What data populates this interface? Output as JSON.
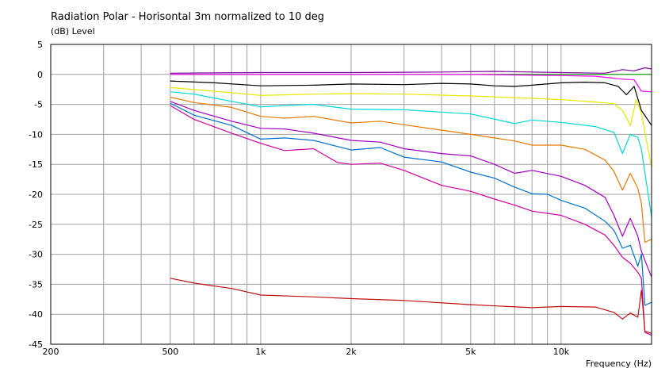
{
  "chart_data": {
    "type": "line",
    "title": "Radiation Polar - Horisontal 3m normalized to 10 deg",
    "ylabel": "(dB)  Level",
    "xlabel": "Frequency  (Hz)",
    "x_scale": "log",
    "xlim": [
      200,
      20000
    ],
    "ylim": [
      -45,
      5
    ],
    "grid": true,
    "x_tick_labels": [
      {
        "value": 200,
        "label": "200"
      },
      {
        "value": 500,
        "label": "500"
      },
      {
        "value": 1000,
        "label": "1k"
      },
      {
        "value": 2000,
        "label": "2k"
      },
      {
        "value": 5000,
        "label": "5k"
      },
      {
        "value": 10000,
        "label": "10k"
      }
    ],
    "x_minor_grid": [
      300,
      400,
      600,
      700,
      800,
      900,
      3000,
      4000,
      6000,
      7000,
      8000,
      9000,
      20000
    ],
    "y_ticks": [
      5,
      0,
      -5,
      -10,
      -15,
      -20,
      -25,
      -30,
      -35,
      -40,
      -45
    ],
    "series": [
      {
        "color": "#00a000",
        "x": [
          500,
          1000,
          2000,
          5000,
          10000,
          15000,
          20000
        ],
        "y": [
          0,
          0,
          0,
          0,
          0,
          0,
          0
        ]
      },
      {
        "color": "#8000a0",
        "x": [
          500,
          1000,
          2000,
          4000,
          6000,
          10000,
          14000,
          16000,
          17500,
          19000,
          20000
        ],
        "y": [
          0.2,
          0.3,
          0.3,
          0.4,
          0.5,
          0.3,
          0.2,
          0.8,
          0.6,
          1.1,
          0.9
        ]
      },
      {
        "color": "#ff00ff",
        "x": [
          500,
          1000,
          2000,
          5000,
          10000,
          13000,
          16000,
          17500,
          18500,
          20000
        ],
        "y": [
          0,
          0,
          0,
          0,
          -0.2,
          -0.3,
          -0.8,
          -0.9,
          -2.8,
          -2.9
        ]
      },
      {
        "color": "#000000",
        "x": [
          500,
          700,
          1000,
          1500,
          2000,
          3000,
          4000,
          5000,
          6000,
          7000,
          8000,
          10000,
          12000,
          14000,
          15500,
          16500,
          17500,
          18500,
          20000
        ],
        "y": [
          -1.1,
          -1.4,
          -1.9,
          -1.8,
          -1.6,
          -1.7,
          -1.5,
          -1.6,
          -1.9,
          -2.0,
          -1.8,
          -1.4,
          -1.3,
          -1.4,
          -2.0,
          -3.4,
          -2.0,
          -6.0,
          -8.5
        ]
      },
      {
        "color": "#e8e800",
        "x": [
          500,
          700,
          1000,
          1500,
          2000,
          3000,
          5000,
          8000,
          10000,
          13000,
          15000,
          16000,
          17000,
          17800,
          18500,
          20000
        ],
        "y": [
          -2.2,
          -2.8,
          -3.5,
          -3.3,
          -3.2,
          -3.3,
          -3.6,
          -4.0,
          -4.2,
          -4.6,
          -4.9,
          -6.0,
          -8.5,
          -4.2,
          -6.5,
          -15.5
        ]
      },
      {
        "color": "#00d8d8",
        "x": [
          500,
          600,
          800,
          1000,
          1200,
          1500,
          2000,
          3000,
          5000,
          7000,
          8000,
          10000,
          13000,
          15000,
          16000,
          17000,
          18000,
          18500,
          20000
        ],
        "y": [
          -2.9,
          -3.3,
          -4.5,
          -5.4,
          -5.2,
          -5.0,
          -5.8,
          -5.9,
          -6.6,
          -8.2,
          -7.6,
          -8.0,
          -8.7,
          -9.7,
          -13.2,
          -10.0,
          -10.5,
          -12.5,
          -23.8
        ]
      },
      {
        "color": "#e87800",
        "x": [
          500,
          600,
          800,
          1000,
          1200,
          1500,
          2000,
          2500,
          3000,
          4000,
          5000,
          7000,
          8000,
          10000,
          12000,
          14000,
          15000,
          16000,
          17000,
          18000,
          18500,
          19000,
          20000
        ],
        "y": [
          -3.8,
          -4.7,
          -5.5,
          -7.0,
          -7.3,
          -7.0,
          -8.1,
          -7.8,
          -8.4,
          -9.3,
          -10.0,
          -11.1,
          -11.8,
          -11.8,
          -12.5,
          -14.3,
          -16.2,
          -19.3,
          -16.5,
          -19.0,
          -21.5,
          -28.0,
          -27.5
        ]
      },
      {
        "color": "#a000c0",
        "x": [
          500,
          600,
          800,
          1000,
          1200,
          1500,
          2000,
          2500,
          3000,
          4000,
          5000,
          6000,
          7000,
          8000,
          10000,
          12000,
          14000,
          15000,
          16000,
          17000,
          18000,
          18500,
          19000,
          20000
        ],
        "y": [
          -4.5,
          -6.0,
          -7.8,
          -9.0,
          -9.1,
          -9.8,
          -11.0,
          -11.3,
          -12.4,
          -13.2,
          -13.6,
          -15.0,
          -16.5,
          -16.0,
          -17.0,
          -18.5,
          -20.5,
          -23.5,
          -27.0,
          -24.0,
          -27.0,
          -29.5,
          -31.0,
          -33.8
        ]
      },
      {
        "color": "#0070d0",
        "x": [
          500,
          600,
          800,
          1000,
          1200,
          1500,
          2000,
          2500,
          3000,
          4000,
          5000,
          6000,
          7000,
          8000,
          9000,
          10000,
          12000,
          14000,
          15000,
          16000,
          17000,
          18000,
          18500,
          19000,
          20000
        ],
        "y": [
          -4.8,
          -6.8,
          -8.5,
          -10.8,
          -10.6,
          -11.0,
          -12.6,
          -12.2,
          -13.8,
          -14.6,
          -16.3,
          -17.3,
          -18.8,
          -19.9,
          -20.0,
          -21.0,
          -22.3,
          -24.5,
          -26.0,
          -29.0,
          -28.5,
          -32.0,
          -30.0,
          -38.5,
          -38.0
        ]
      },
      {
        "color": "#d000a0",
        "x": [
          500,
          600,
          800,
          1000,
          1200,
          1500,
          1800,
          2000,
          2500,
          3000,
          4000,
          5000,
          6000,
          7000,
          8000,
          10000,
          12000,
          14000,
          15000,
          16000,
          17000,
          18000,
          18500,
          19000,
          20000
        ],
        "y": [
          -5.2,
          -7.5,
          -9.8,
          -11.5,
          -12.7,
          -12.4,
          -14.7,
          -15.0,
          -14.8,
          -16.0,
          -18.5,
          -19.5,
          -20.8,
          -21.8,
          -22.8,
          -23.5,
          -25.0,
          -26.8,
          -28.5,
          -30.5,
          -31.5,
          -33.0,
          -34.0,
          -43.0,
          -43.5
        ]
      },
      {
        "color": "#c01010",
        "x": [
          500,
          600,
          800,
          1000,
          1500,
          2000,
          3000,
          5000,
          8000,
          10000,
          13000,
          15000,
          16000,
          17000,
          18000,
          18500,
          19000,
          20000
        ],
        "y": [
          -34.0,
          -34.8,
          -35.7,
          -36.8,
          -37.1,
          -37.4,
          -37.7,
          -38.4,
          -38.9,
          -38.7,
          -38.8,
          -39.7,
          -40.8,
          -39.8,
          -40.5,
          -36.0,
          -42.8,
          -43.2
        ]
      }
    ]
  }
}
